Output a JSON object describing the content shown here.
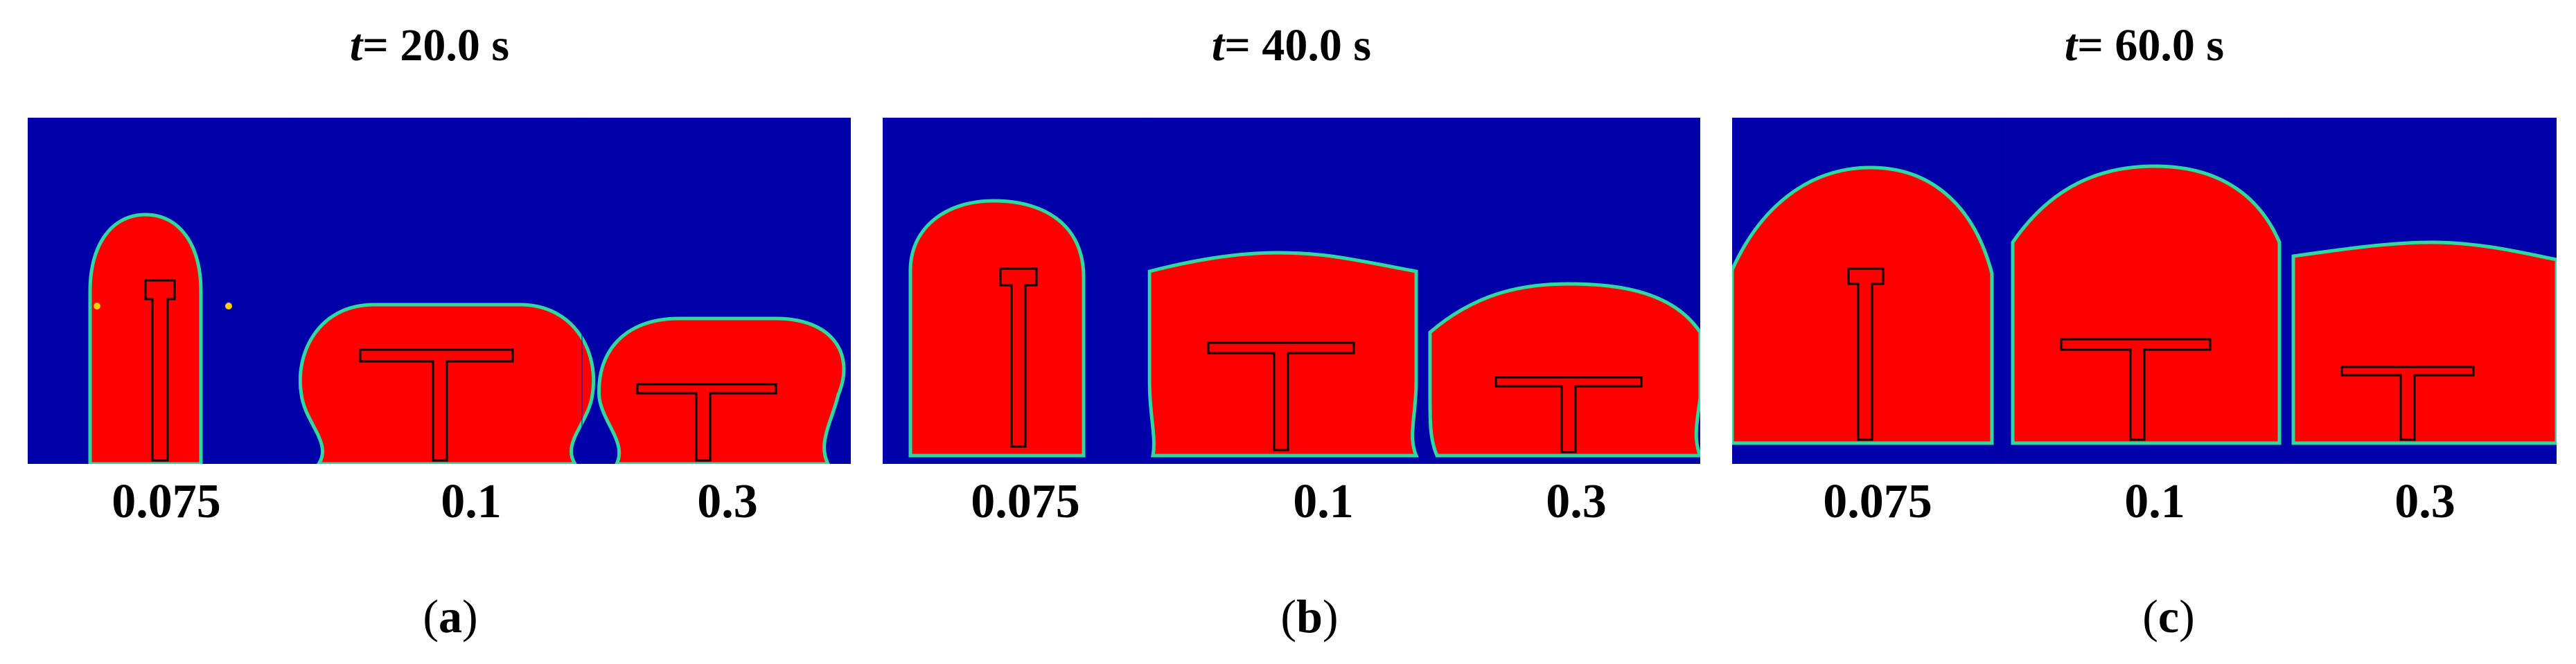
{
  "panels": [
    {
      "title_var": "t",
      "title_value": " = 20.0 s",
      "letter_open": "(",
      "letter": "a",
      "letter_close": ")",
      "cases": [
        "0.075",
        "0.1",
        "0.3"
      ]
    },
    {
      "title_var": "t",
      "title_value": " = 40.0 s",
      "letter_open": "(",
      "letter": "b",
      "letter_close": ")",
      "cases": [
        "0.075",
        "0.1",
        "0.3"
      ]
    },
    {
      "title_var": "t",
      "title_value": " = 60.0 s",
      "letter_open": "(",
      "letter": "c",
      "letter_close": ")",
      "cases": [
        "0.075",
        "0.1",
        "0.3"
      ]
    }
  ],
  "colors": {
    "background_fluid": "#0000a8",
    "dense_fluid": "#ff0000",
    "interface": "#30d8a0",
    "structure_outline": "#000000"
  }
}
